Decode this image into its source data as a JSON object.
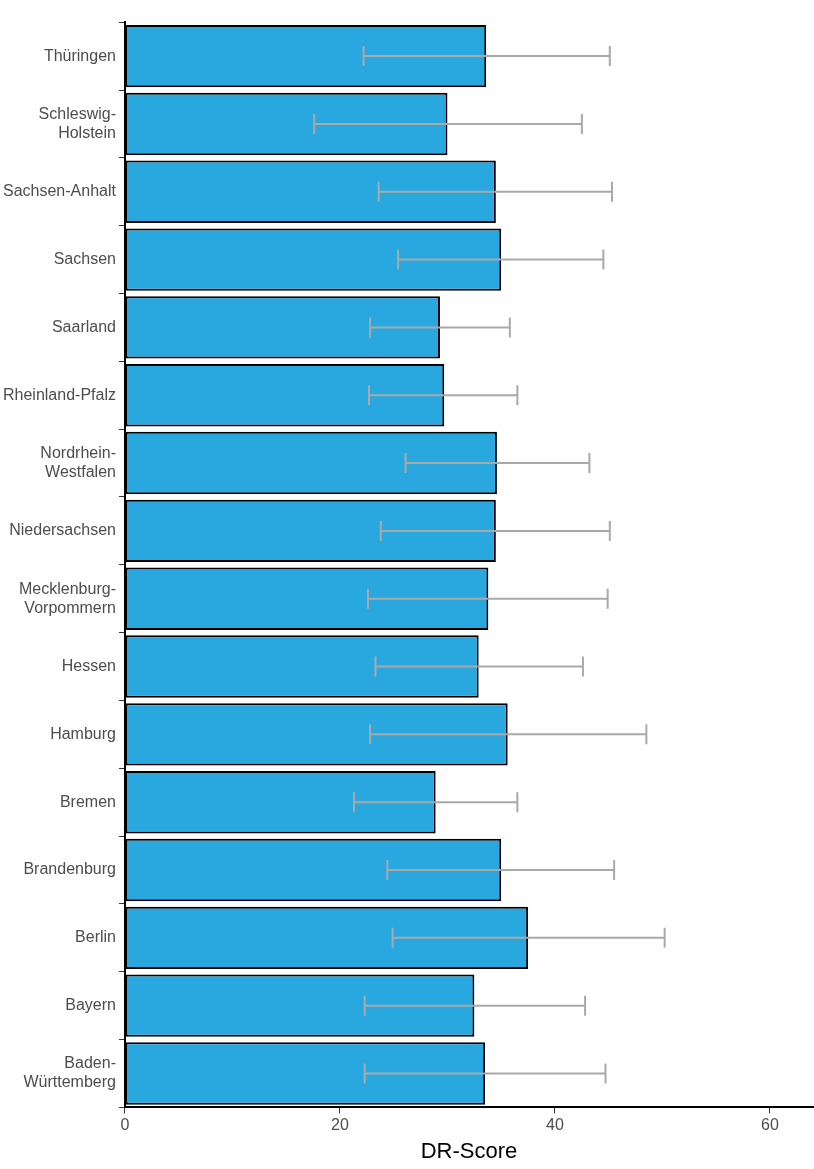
{
  "chart_data": {
    "type": "bar",
    "orientation": "horizontal",
    "xlabel": "DR-Score",
    "categories": [
      "Thüringen",
      "Schleswig-\nHolstein",
      "Sachsen-Anhalt",
      "Sachsen",
      "Saarland",
      "Rheinland-Pfalz",
      "Nordrhein-\nWestfalen",
      "Niedersachsen",
      "Mecklenburg-\nVorpommern",
      "Hessen",
      "Hamburg",
      "Bremen",
      "Brandenburg",
      "Berlin",
      "Bayern",
      "Baden-\nWürttemberg"
    ],
    "values": [
      33.6,
      30.0,
      34.5,
      35.0,
      29.3,
      29.7,
      34.6,
      34.5,
      33.8,
      32.9,
      35.6,
      28.9,
      35.0,
      37.5,
      32.5,
      33.5
    ],
    "errors": [
      [
        22.2,
        45.1
      ],
      [
        17.6,
        42.5
      ],
      [
        23.6,
        45.3
      ],
      [
        25.4,
        44.5
      ],
      [
        22.8,
        35.8
      ],
      [
        22.7,
        36.5
      ],
      [
        26.1,
        43.2
      ],
      [
        23.8,
        45.1
      ],
      [
        22.6,
        44.9
      ],
      [
        23.3,
        42.6
      ],
      [
        22.8,
        48.5
      ],
      [
        21.3,
        36.5
      ],
      [
        24.4,
        45.5
      ],
      [
        24.9,
        50.2
      ],
      [
        22.3,
        42.8
      ],
      [
        22.3,
        44.7
      ]
    ],
    "color": "#29a8e0",
    "xlim": [
      0,
      64
    ],
    "xticks": [
      0,
      20,
      40,
      60
    ],
    "grid": false,
    "legend": false
  }
}
